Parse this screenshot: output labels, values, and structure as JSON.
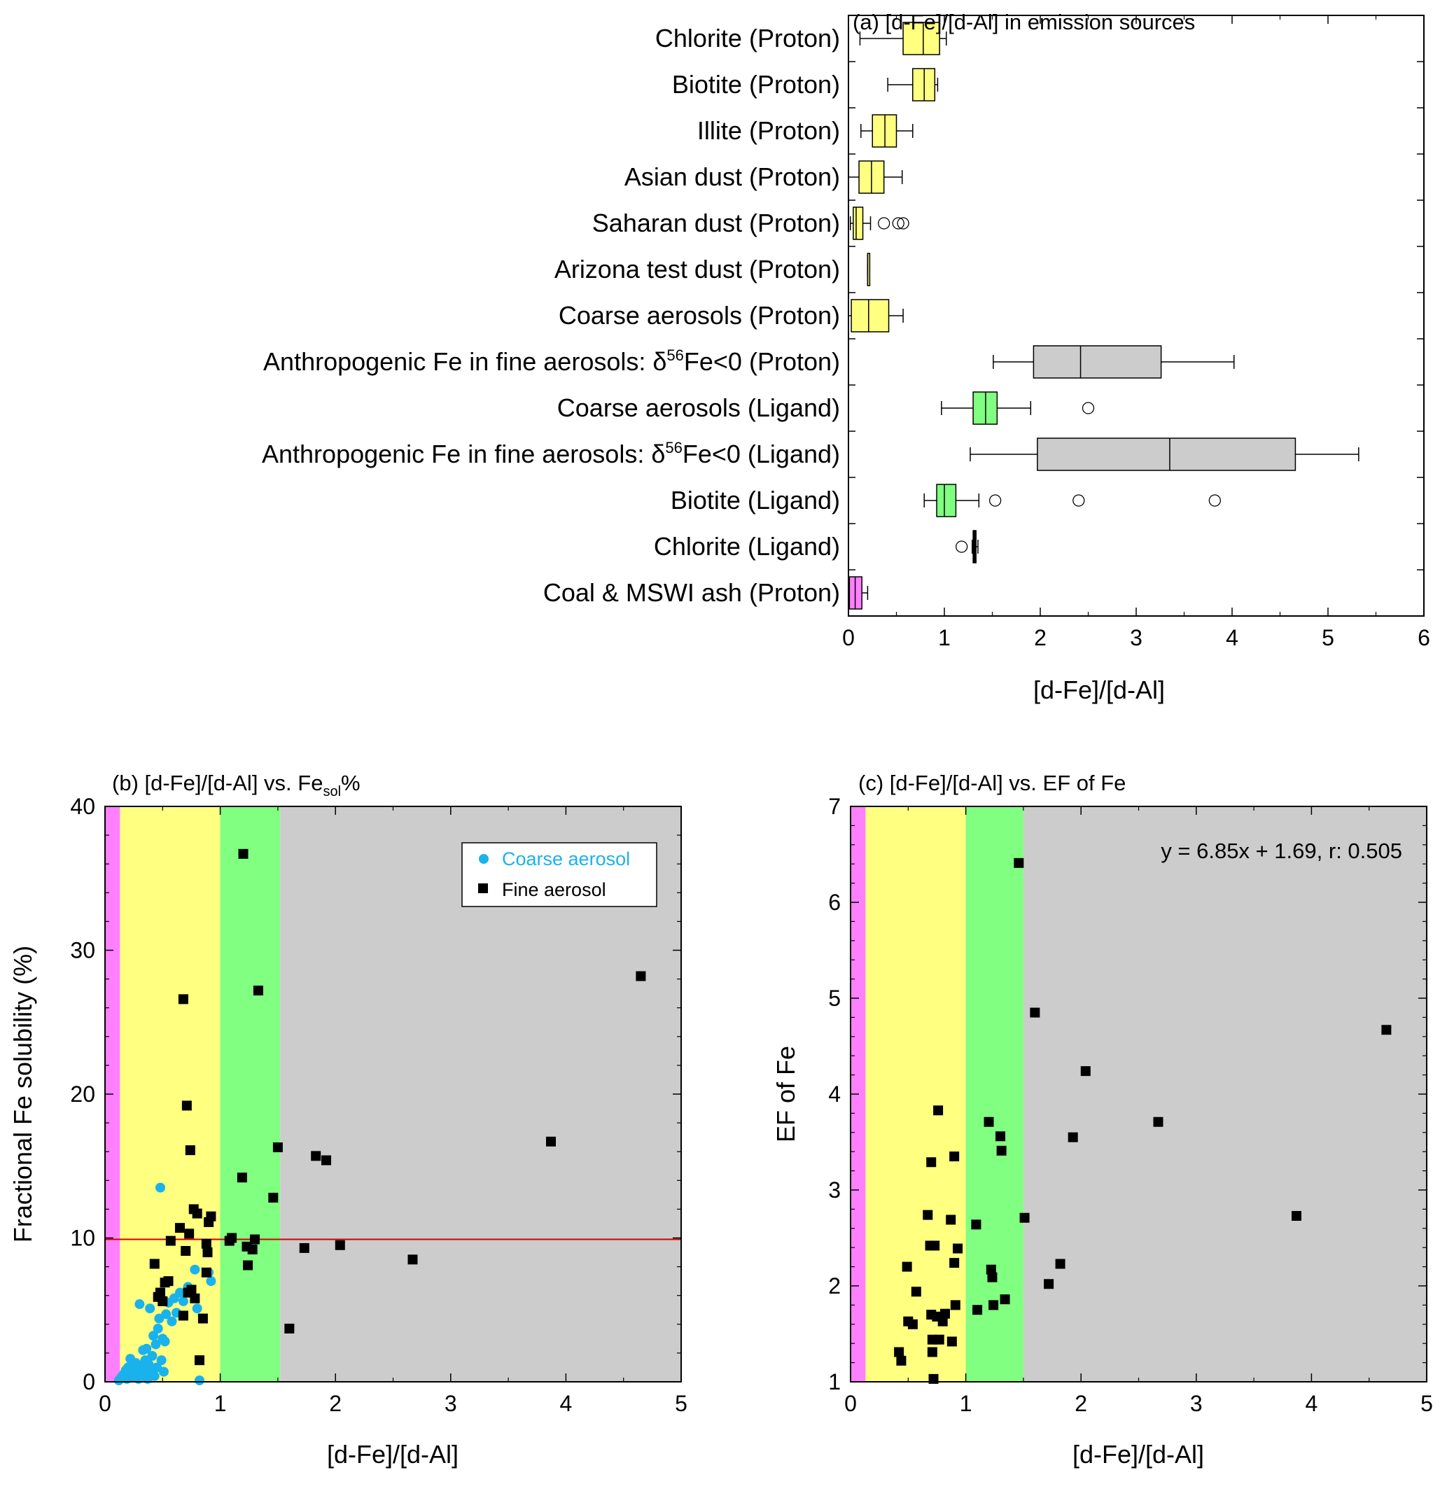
{
  "colors": {
    "proton_yellow": "#ffff80",
    "ligand_green": "#80ff80",
    "anthropogenic_gray": "#cccccc",
    "ash_magenta": "#ff80ff",
    "coarse_marker": "#1ab2ec",
    "fine_marker": "#000000",
    "reference_line": "#cc0000"
  },
  "chart_data": [
    {
      "type": "box",
      "title": "(a) [d-Fe]/[d-Al] in emission sources",
      "xlabel": "[d-Fe]/[d-Al]",
      "xlim": [
        0,
        6
      ],
      "xticks": [
        "0",
        "1",
        "2",
        "3",
        "4",
        "5",
        "6"
      ],
      "categories": [
        {
          "label": "Chlorite (Proton)",
          "color": "#ffff80",
          "whisker_low": 0.12,
          "q1": 0.57,
          "median": 0.78,
          "q3": 0.95,
          "whisker_high": 1.02,
          "outliers": []
        },
        {
          "label": "Biotite (Proton)",
          "color": "#ffff80",
          "whisker_low": 0.41,
          "q1": 0.67,
          "median": 0.79,
          "q3": 0.9,
          "whisker_high": 0.93,
          "outliers": []
        },
        {
          "label": "Illite (Proton)",
          "color": "#ffff80",
          "whisker_low": 0.13,
          "q1": 0.25,
          "median": 0.38,
          "q3": 0.5,
          "whisker_high": 0.67,
          "outliers": []
        },
        {
          "label": "Asian dust (Proton)",
          "color": "#ffff80",
          "whisker_low": 0.0,
          "q1": 0.11,
          "median": 0.24,
          "q3": 0.37,
          "whisker_high": 0.56,
          "outliers": []
        },
        {
          "label": "Saharan dust (Proton)",
          "color": "#ffff80",
          "whisker_low": 0.02,
          "q1": 0.05,
          "median": 0.08,
          "q3": 0.15,
          "whisker_high": 0.23,
          "outliers": [
            0.37,
            0.52,
            0.57
          ]
        },
        {
          "label": "Arizona test dust (Proton)",
          "color": "#ffff80",
          "whisker_low": 0.2,
          "q1": 0.2,
          "median": 0.2,
          "q3": 0.2,
          "whisker_high": 0.2,
          "outliers": []
        },
        {
          "label": "Coarse aerosols (Proton)",
          "color": "#ffff80",
          "whisker_low": 0.0,
          "q1": 0.03,
          "median": 0.21,
          "q3": 0.42,
          "whisker_high": 0.57,
          "outliers": []
        },
        {
          "label_pre": "Anthropogenic Fe in fine aerosols: δ",
          "label_sup": "56",
          "label_post": "Fe<0 (Proton)",
          "color": "#cccccc",
          "whisker_low": 1.51,
          "q1": 1.93,
          "median": 2.42,
          "q3": 3.26,
          "whisker_high": 4.02,
          "outliers": []
        },
        {
          "label": "Coarse aerosols (Ligand)",
          "color": "#80ff80",
          "whisker_low": 0.97,
          "q1": 1.3,
          "median": 1.43,
          "q3": 1.55,
          "whisker_high": 1.9,
          "outliers": [
            2.5
          ]
        },
        {
          "label_pre": "Anthropogenic Fe in fine aerosols: δ",
          "label_sup": "56",
          "label_post": "Fe<0 (Ligand)",
          "color": "#cccccc",
          "whisker_low": 1.27,
          "q1": 1.97,
          "median": 3.35,
          "q3": 4.66,
          "whisker_high": 5.32,
          "outliers": []
        },
        {
          "label": "Biotite (Ligand)",
          "color": "#80ff80",
          "whisker_low": 0.79,
          "q1": 0.92,
          "median": 1.0,
          "q3": 1.12,
          "whisker_high": 1.36,
          "outliers": [
            1.53,
            2.4,
            3.82
          ]
        },
        {
          "label": "Chlorite (Ligand)",
          "color": "#000000",
          "whisker_low": 1.29,
          "q1": 1.3,
          "median": 1.31,
          "q3": 1.33,
          "whisker_high": 1.35,
          "outliers": [
            1.18
          ]
        },
        {
          "label": "Coal & MSWI ash (Proton)",
          "color": "#ff80ff",
          "whisker_low": 0.0,
          "q1": 0.01,
          "median": 0.07,
          "q3": 0.14,
          "whisker_high": 0.2,
          "outliers": []
        }
      ]
    },
    {
      "type": "scatter",
      "title_pre": "(b) [d-Fe]/[d-Al] vs. Fe",
      "title_sub": "sol",
      "title_post": "%",
      "xlabel": "[d-Fe]/[d-Al]",
      "ylabel": "Fractional Fe solubility (%)",
      "xlim": [
        0,
        5
      ],
      "ylim": [
        0,
        40
      ],
      "xticks": [
        "0",
        "1",
        "2",
        "3",
        "4",
        "5"
      ],
      "yticks": [
        "0",
        "10",
        "20",
        "30",
        "40"
      ],
      "bands": [
        {
          "from": 0,
          "to": 0.13,
          "color": "#ff80ff"
        },
        {
          "from": 0.13,
          "to": 1.0,
          "color": "#ffff80"
        },
        {
          "from": 1.0,
          "to": 1.52,
          "color": "#80ff80"
        },
        {
          "from": 1.52,
          "to": 5,
          "color": "#cccccc"
        }
      ],
      "hline": 9.9,
      "legend_position": "top-right",
      "series": [
        {
          "name": "Coarse aerosol",
          "marker": "circle",
          "color": "#1ab2ec",
          "points": [
            [
              0.12,
              0.1
            ],
            [
              0.14,
              0.3
            ],
            [
              0.16,
              0.5
            ],
            [
              0.18,
              0.8
            ],
            [
              0.19,
              0.2
            ],
            [
              0.2,
              1.0
            ],
            [
              0.21,
              0.6
            ],
            [
              0.22,
              1.6
            ],
            [
              0.23,
              0.3
            ],
            [
              0.25,
              0.9
            ],
            [
              0.26,
              0.5
            ],
            [
              0.27,
              1.3
            ],
            [
              0.28,
              0.7
            ],
            [
              0.29,
              0.2
            ],
            [
              0.3,
              5.4
            ],
            [
              0.31,
              1.1
            ],
            [
              0.32,
              0.4
            ],
            [
              0.33,
              2.2
            ],
            [
              0.34,
              0.8
            ],
            [
              0.35,
              1.5
            ],
            [
              0.36,
              2.3
            ],
            [
              0.37,
              0.2
            ],
            [
              0.38,
              1.2
            ],
            [
              0.39,
              5.1
            ],
            [
              0.4,
              0.6
            ],
            [
              0.41,
              1.8
            ],
            [
              0.42,
              3.2
            ],
            [
              0.43,
              0.4
            ],
            [
              0.44,
              2.6
            ],
            [
              0.45,
              1.0
            ],
            [
              0.46,
              3.7
            ],
            [
              0.47,
              4.4
            ],
            [
              0.48,
              13.5
            ],
            [
              0.49,
              1.5
            ],
            [
              0.5,
              3.0
            ],
            [
              0.51,
              0.7
            ],
            [
              0.52,
              2.8
            ],
            [
              0.53,
              4.7
            ],
            [
              0.55,
              5.5
            ],
            [
              0.58,
              4.2
            ],
            [
              0.6,
              5.8
            ],
            [
              0.62,
              4.8
            ],
            [
              0.65,
              6.2
            ],
            [
              0.68,
              5.6
            ],
            [
              0.72,
              6.6
            ],
            [
              0.78,
              7.8
            ],
            [
              0.8,
              5.1
            ],
            [
              0.82,
              0.1
            ],
            [
              0.9,
              7.6
            ],
            [
              0.92,
              7.0
            ]
          ]
        },
        {
          "name": "Fine aerosol",
          "marker": "square",
          "color": "#000000",
          "points": [
            [
              0.43,
              8.2
            ],
            [
              0.46,
              5.9
            ],
            [
              0.48,
              6.2
            ],
            [
              0.5,
              5.6
            ],
            [
              0.52,
              6.9
            ],
            [
              0.55,
              7.0
            ],
            [
              0.57,
              9.8
            ],
            [
              0.65,
              10.7
            ],
            [
              0.68,
              26.6
            ],
            [
              0.7,
              9.1
            ],
            [
              0.71,
              19.2
            ],
            [
              0.72,
              6.2
            ],
            [
              0.73,
              10.3
            ],
            [
              0.74,
              16.1
            ],
            [
              0.75,
              6.4
            ],
            [
              0.77,
              12.0
            ],
            [
              0.78,
              5.8
            ],
            [
              0.8,
              11.7
            ],
            [
              0.82,
              1.5
            ],
            [
              0.85,
              4.4
            ],
            [
              0.88,
              9.6
            ],
            [
              0.89,
              9.0
            ],
            [
              0.9,
              11.1
            ],
            [
              0.92,
              11.5
            ],
            [
              0.68,
              4.6
            ],
            [
              0.88,
              7.6
            ],
            [
              1.08,
              9.8
            ],
            [
              1.1,
              10.0
            ],
            [
              1.19,
              14.2
            ],
            [
              1.2,
              36.7
            ],
            [
              1.23,
              9.4
            ],
            [
              1.24,
              8.1
            ],
            [
              1.28,
              9.2
            ],
            [
              1.3,
              9.9
            ],
            [
              1.33,
              27.2
            ],
            [
              1.46,
              12.8
            ],
            [
              1.5,
              16.3
            ],
            [
              1.6,
              3.7
            ],
            [
              1.73,
              9.3
            ],
            [
              1.83,
              15.7
            ],
            [
              1.92,
              15.4
            ],
            [
              2.04,
              9.5
            ],
            [
              2.67,
              8.5
            ],
            [
              3.87,
              16.7
            ],
            [
              4.65,
              28.2
            ]
          ]
        }
      ]
    },
    {
      "type": "scatter",
      "title": "(c) [d-Fe]/[d-Al] vs. EF of Fe",
      "xlabel": "[d-Fe]/[d-Al]",
      "ylabel": "EF of Fe",
      "xlim": [
        0,
        5
      ],
      "ylim": [
        1,
        7
      ],
      "xticks": [
        "0",
        "1",
        "2",
        "3",
        "4",
        "5"
      ],
      "yticks": [
        "1",
        "2",
        "3",
        "4",
        "5",
        "6",
        "7"
      ],
      "bands": [
        {
          "from": 0,
          "to": 0.13,
          "color": "#ff80ff"
        },
        {
          "from": 0.13,
          "to": 1.0,
          "color": "#ffff80"
        },
        {
          "from": 1.0,
          "to": 1.5,
          "color": "#80ff80"
        },
        {
          "from": 1.5,
          "to": 5,
          "color": "#cccccc"
        }
      ],
      "annotation": "y = 6.85x + 1.69, r: 0.505",
      "series": [
        {
          "name": "",
          "marker": "square",
          "color": "#000000",
          "points": [
            [
              0.42,
              1.31
            ],
            [
              0.44,
              1.22
            ],
            [
              0.49,
              2.2
            ],
            [
              0.5,
              1.63
            ],
            [
              0.54,
              1.6
            ],
            [
              0.57,
              1.94
            ],
            [
              0.67,
              2.74
            ],
            [
              0.69,
              2.42
            ],
            [
              0.7,
              3.29
            ],
            [
              0.7,
              1.7
            ],
            [
              0.71,
              1.44
            ],
            [
              0.71,
              1.31
            ],
            [
              0.72,
              1.03
            ],
            [
              0.73,
              2.42
            ],
            [
              0.75,
              1.68
            ],
            [
              0.76,
              3.83
            ],
            [
              0.77,
              1.44
            ],
            [
              0.8,
              1.63
            ],
            [
              0.82,
              1.71
            ],
            [
              0.87,
              2.69
            ],
            [
              0.88,
              1.42
            ],
            [
              0.9,
              3.35
            ],
            [
              0.9,
              2.24
            ],
            [
              0.91,
              1.8
            ],
            [
              0.93,
              2.39
            ],
            [
              1.09,
              2.64
            ],
            [
              1.1,
              1.75
            ],
            [
              1.2,
              3.71
            ],
            [
              1.22,
              2.17
            ],
            [
              1.23,
              2.09
            ],
            [
              1.24,
              1.8
            ],
            [
              1.3,
              3.56
            ],
            [
              1.31,
              3.41
            ],
            [
              1.34,
              1.86
            ],
            [
              1.46,
              6.41
            ],
            [
              1.51,
              2.71
            ],
            [
              1.6,
              4.85
            ],
            [
              1.72,
              2.02
            ],
            [
              1.82,
              2.23
            ],
            [
              1.93,
              3.55
            ],
            [
              2.04,
              4.24
            ],
            [
              2.67,
              3.71
            ],
            [
              3.87,
              2.73
            ],
            [
              4.65,
              4.67
            ]
          ]
        }
      ]
    }
  ]
}
